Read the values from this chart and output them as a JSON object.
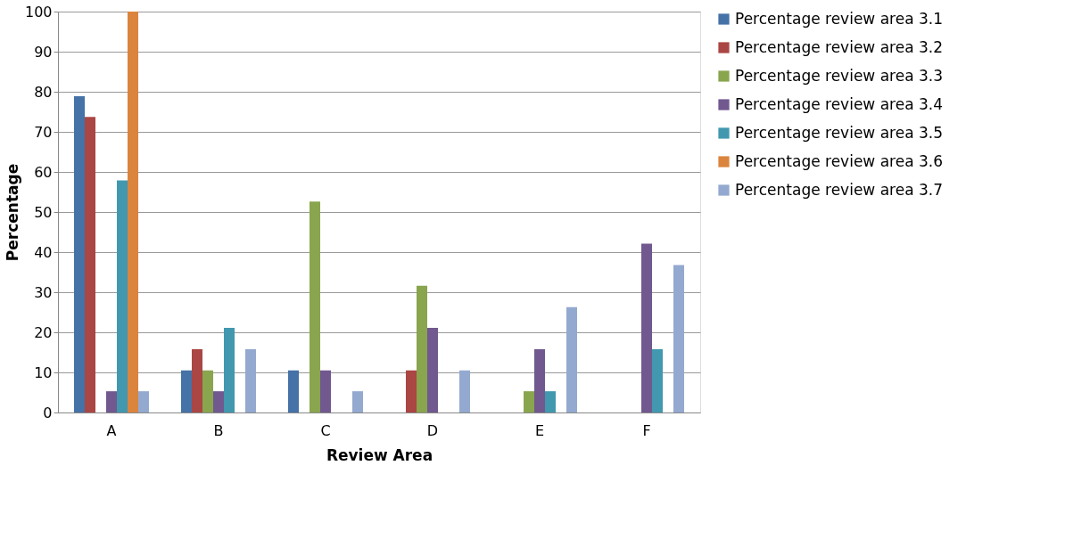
{
  "chart_data": {
    "type": "bar",
    "xlabel": "Review Area",
    "ylabel": "Percentage",
    "categories": [
      "A",
      "B",
      "C",
      "D",
      "E",
      "F"
    ],
    "series": [
      {
        "name": "Percentage review area 3.1",
        "color": "#4572a7",
        "values": [
          78.9,
          10.5,
          10.5,
          0,
          0,
          0
        ]
      },
      {
        "name": "Percentage review area 3.2",
        "color": "#aa4643",
        "values": [
          73.7,
          15.8,
          0,
          10.5,
          0,
          0
        ]
      },
      {
        "name": "Percentage review area 3.3",
        "color": "#89a54e",
        "values": [
          0,
          10.5,
          52.6,
          31.6,
          5.3,
          0
        ]
      },
      {
        "name": "Percentage review area 3.4",
        "color": "#71588f",
        "values": [
          5.3,
          5.3,
          10.5,
          21.1,
          15.8,
          42.1
        ]
      },
      {
        "name": "Percentage review area 3.5",
        "color": "#4198af",
        "values": [
          57.9,
          21.1,
          0,
          0,
          5.3,
          15.8
        ]
      },
      {
        "name": "Percentage review area 3.6",
        "color": "#db843d",
        "values": [
          100,
          0,
          0,
          0,
          0,
          0
        ]
      },
      {
        "name": "Percentage review area 3.7",
        "color": "#93a9cf",
        "values": [
          5.3,
          15.8,
          5.3,
          10.5,
          26.3,
          36.8
        ]
      }
    ],
    "ylim": [
      0,
      100
    ],
    "yticks": [
      0,
      10,
      20,
      30,
      40,
      50,
      60,
      70,
      80,
      90,
      100
    ],
    "grid": "y",
    "legend": "right"
  }
}
